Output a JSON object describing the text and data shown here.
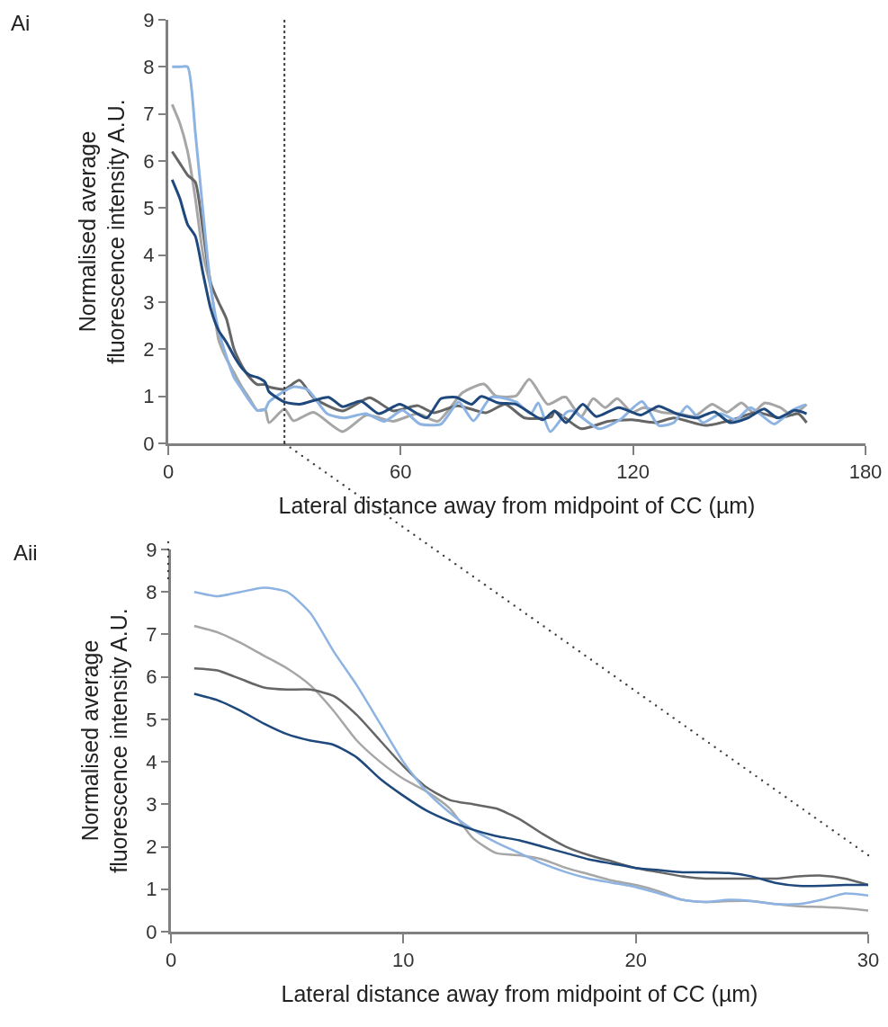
{
  "chart_data": [
    {
      "type": "line",
      "title": "Ai",
      "xlabel": "Lateral distance away from midpoint of CC (µm)",
      "ylabel": "Normalised average\nfluorescence intensity A.U.",
      "xlim": [
        0,
        180
      ],
      "ylim": [
        0,
        9
      ],
      "xticks": [
        0,
        60,
        120,
        180
      ],
      "yticks": [
        0,
        1,
        2,
        3,
        4,
        5,
        6,
        7,
        8,
        9
      ],
      "line_style": "solid",
      "marker": "none",
      "ref_lines": [
        {
          "axis": "x",
          "value": 30,
          "label": null,
          "line_style": "dotted",
          "color": "#404040"
        }
      ],
      "series": [
        {
          "color": "#a6a6a6",
          "x": [
            1,
            3,
            5,
            7,
            9,
            11,
            13,
            15,
            17,
            19,
            21,
            23,
            25,
            26,
            30,
            32.3,
            37.5,
            45,
            51.2,
            58,
            64.4,
            69.6,
            76,
            81.5,
            84.5,
            89.8,
            93.2,
            98,
            101.8,
            102.7,
            106.6,
            109.7,
            112.8,
            115.9,
            119.7,
            122.8,
            127.4,
            132,
            135.8,
            140.4,
            144.2,
            148,
            151,
            154,
            158,
            161,
            164.8
          ],
          "values": [
            7.2,
            6.8,
            6.2,
            5.2,
            4,
            3.3,
            2.2,
            1.8,
            1.5,
            1.2,
            0.95,
            0.7,
            0.72,
            0.44,
            0.73,
            0.48,
            0.66,
            0.25,
            0.6,
            0.47,
            0.63,
            0.47,
            1.08,
            1.26,
            1.01,
            1.01,
            1.36,
            0.83,
            0.98,
            0.98,
            0.57,
            0.95,
            0.76,
            0.95,
            0.66,
            0.76,
            0.66,
            0.63,
            0.57,
            0.83,
            0.66,
            0.86,
            0.66,
            0.86,
            0.76,
            0.6,
            0.83
          ]
        },
        {
          "color": "#666666",
          "x": [
            1,
            3,
            5,
            7,
            9,
            11,
            13,
            15,
            17,
            19,
            21,
            23,
            25,
            26,
            30,
            33.9,
            37.5,
            45,
            52,
            58,
            64.4,
            68.5,
            74.7,
            82,
            87,
            92,
            99,
            99.7,
            106.6,
            113.6,
            119.7,
            125.8,
            130.5,
            138.8,
            145.7,
            151.8,
            158,
            162.6,
            164.8
          ],
          "values": [
            6.2,
            5.95,
            5.7,
            5.55,
            4.5,
            3.4,
            3,
            2.65,
            2,
            1.65,
            1.4,
            1.25,
            1.25,
            1.2,
            1.15,
            1.34,
            0.97,
            0.69,
            0.97,
            0.69,
            0.8,
            0.65,
            0.8,
            0.65,
            0.83,
            0.54,
            0.57,
            0.69,
            0.31,
            0.47,
            0.5,
            0.44,
            0.54,
            0.38,
            0.5,
            0.66,
            0.54,
            0.63,
            0.44
          ]
        },
        {
          "color": "#8db3e2",
          "x": [
            1,
            3,
            5,
            7,
            9,
            11,
            13,
            15,
            17,
            19,
            21,
            23,
            25,
            26,
            32.2,
            36,
            41,
            45.4,
            51,
            55.8,
            60.5,
            65,
            70.4,
            75,
            78.8,
            83.4,
            89.8,
            93.6,
            95.5,
            98.6,
            102.8,
            104.3,
            111.2,
            116.6,
            122.3,
            126.6,
            130.5,
            133.9,
            138,
            142.6,
            146.5,
            150.3,
            156.4,
            161,
            164.4
          ],
          "values": [
            8,
            8,
            8,
            6.6,
            4.9,
            3.3,
            2.4,
            1.85,
            1.4,
            1.15,
            0.9,
            0.7,
            0.72,
            0.88,
            1.2,
            1.14,
            0.63,
            0.54,
            0.63,
            0.47,
            0.7,
            0.41,
            0.41,
            0.88,
            0.48,
            0.98,
            0.88,
            0.63,
            0.86,
            0.25,
            0.66,
            0.69,
            0.31,
            0.5,
            0.89,
            0.38,
            0.44,
            0.79,
            0.44,
            0.63,
            0.5,
            0.76,
            0.41,
            0.7,
            0.82
          ]
        },
        {
          "color": "#1f497d",
          "x": [
            1,
            3,
            5,
            7,
            9,
            11,
            13,
            15,
            17,
            19,
            21,
            23,
            25,
            26,
            30,
            33.9,
            41.4,
            45,
            49.7,
            54.4,
            59.8,
            66.7,
            70.4,
            74.3,
            78.3,
            80.8,
            85.2,
            89.8,
            96.7,
            99.7,
            102.7,
            107,
            110.5,
            116.3,
            122,
            126.6,
            131.2,
            136.5,
            141,
            145,
            149.6,
            153.8,
            157.3,
            161.8,
            164.8
          ],
          "values": [
            5.6,
            5.2,
            4.65,
            4.4,
            3.6,
            2.85,
            2.4,
            2.15,
            1.85,
            1.6,
            1.45,
            1.4,
            1.3,
            1.1,
            0.88,
            0.83,
            0.98,
            0.78,
            0.9,
            0.63,
            0.83,
            0.54,
            0.95,
            0.98,
            0.83,
            1,
            0.86,
            0.83,
            0.5,
            0.69,
            0.44,
            0.83,
            0.57,
            0.76,
            0.6,
            0.79,
            0.63,
            0.54,
            0.67,
            0.44,
            0.54,
            0.73,
            0.54,
            0.7,
            0.63
          ]
        }
      ]
    },
    {
      "type": "line",
      "title": "Aii",
      "xlabel": "Lateral distance away from midpoint of CC (µm)",
      "ylabel": "Normalised average\nfluorescence intensity A.U.",
      "xlim": [
        0,
        30
      ],
      "ylim": [
        0,
        9
      ],
      "xticks": [
        0,
        10,
        20,
        30
      ],
      "yticks": [
        0,
        1,
        2,
        3,
        4,
        5,
        6,
        7,
        8,
        9
      ],
      "line_style": "solid",
      "marker": "none",
      "series": [
        {
          "color": "#a6a6a6",
          "x": [
            1,
            2,
            3,
            4,
            5,
            6,
            7,
            8,
            9,
            10,
            11,
            12,
            13,
            14,
            15,
            16,
            17,
            18,
            19,
            20,
            21,
            22,
            23,
            24,
            25,
            26,
            27,
            28,
            29,
            30
          ],
          "values": [
            7.2,
            7.05,
            6.8,
            6.5,
            6.2,
            5.8,
            5.2,
            4.5,
            4,
            3.6,
            3.3,
            2.9,
            2.2,
            1.85,
            1.8,
            1.7,
            1.5,
            1.35,
            1.2,
            1.1,
            0.95,
            0.75,
            0.7,
            0.72,
            0.72,
            0.65,
            0.6,
            0.58,
            0.55,
            0.5
          ]
        },
        {
          "color": "#666666",
          "x": [
            1,
            2,
            3,
            4,
            5,
            6,
            7,
            8,
            9,
            10,
            11,
            12,
            13,
            14,
            15,
            16,
            17,
            18,
            19,
            20,
            21,
            22,
            23,
            24,
            25,
            26,
            27,
            28,
            29,
            30
          ],
          "values": [
            6.2,
            6.15,
            5.95,
            5.75,
            5.7,
            5.7,
            5.55,
            5.1,
            4.5,
            3.9,
            3.4,
            3.1,
            3,
            2.9,
            2.65,
            2.3,
            2,
            1.8,
            1.65,
            1.5,
            1.4,
            1.3,
            1.25,
            1.25,
            1.25,
            1.25,
            1.3,
            1.32,
            1.25,
            1.1
          ]
        },
        {
          "color": "#8db3e2",
          "x": [
            1,
            2,
            3,
            4,
            5,
            6,
            7,
            8,
            9,
            10,
            11,
            12,
            13,
            14,
            15,
            16,
            17,
            18,
            19,
            20,
            21,
            22,
            23,
            24,
            25,
            26,
            27,
            28,
            29,
            30
          ],
          "values": [
            8,
            7.9,
            8,
            8.1,
            8,
            7.5,
            6.6,
            5.8,
            4.9,
            4,
            3.3,
            2.8,
            2.4,
            2.1,
            1.85,
            1.6,
            1.4,
            1.25,
            1.15,
            1.05,
            0.9,
            0.75,
            0.7,
            0.75,
            0.72,
            0.65,
            0.65,
            0.75,
            0.9,
            0.85
          ]
        },
        {
          "color": "#1f497d",
          "x": [
            1,
            2,
            3,
            4,
            5,
            6,
            7,
            8,
            9,
            10,
            11,
            12,
            13,
            14,
            15,
            16,
            17,
            18,
            19,
            20,
            21,
            22,
            23,
            24,
            25,
            26,
            27,
            28,
            29,
            30
          ],
          "values": [
            5.6,
            5.45,
            5.2,
            4.9,
            4.65,
            4.5,
            4.4,
            4.1,
            3.6,
            3.2,
            2.85,
            2.6,
            2.4,
            2.25,
            2.15,
            2,
            1.85,
            1.7,
            1.6,
            1.5,
            1.45,
            1.4,
            1.4,
            1.38,
            1.3,
            1.15,
            1.08,
            1.08,
            1.1,
            1.1
          ]
        }
      ]
    }
  ]
}
